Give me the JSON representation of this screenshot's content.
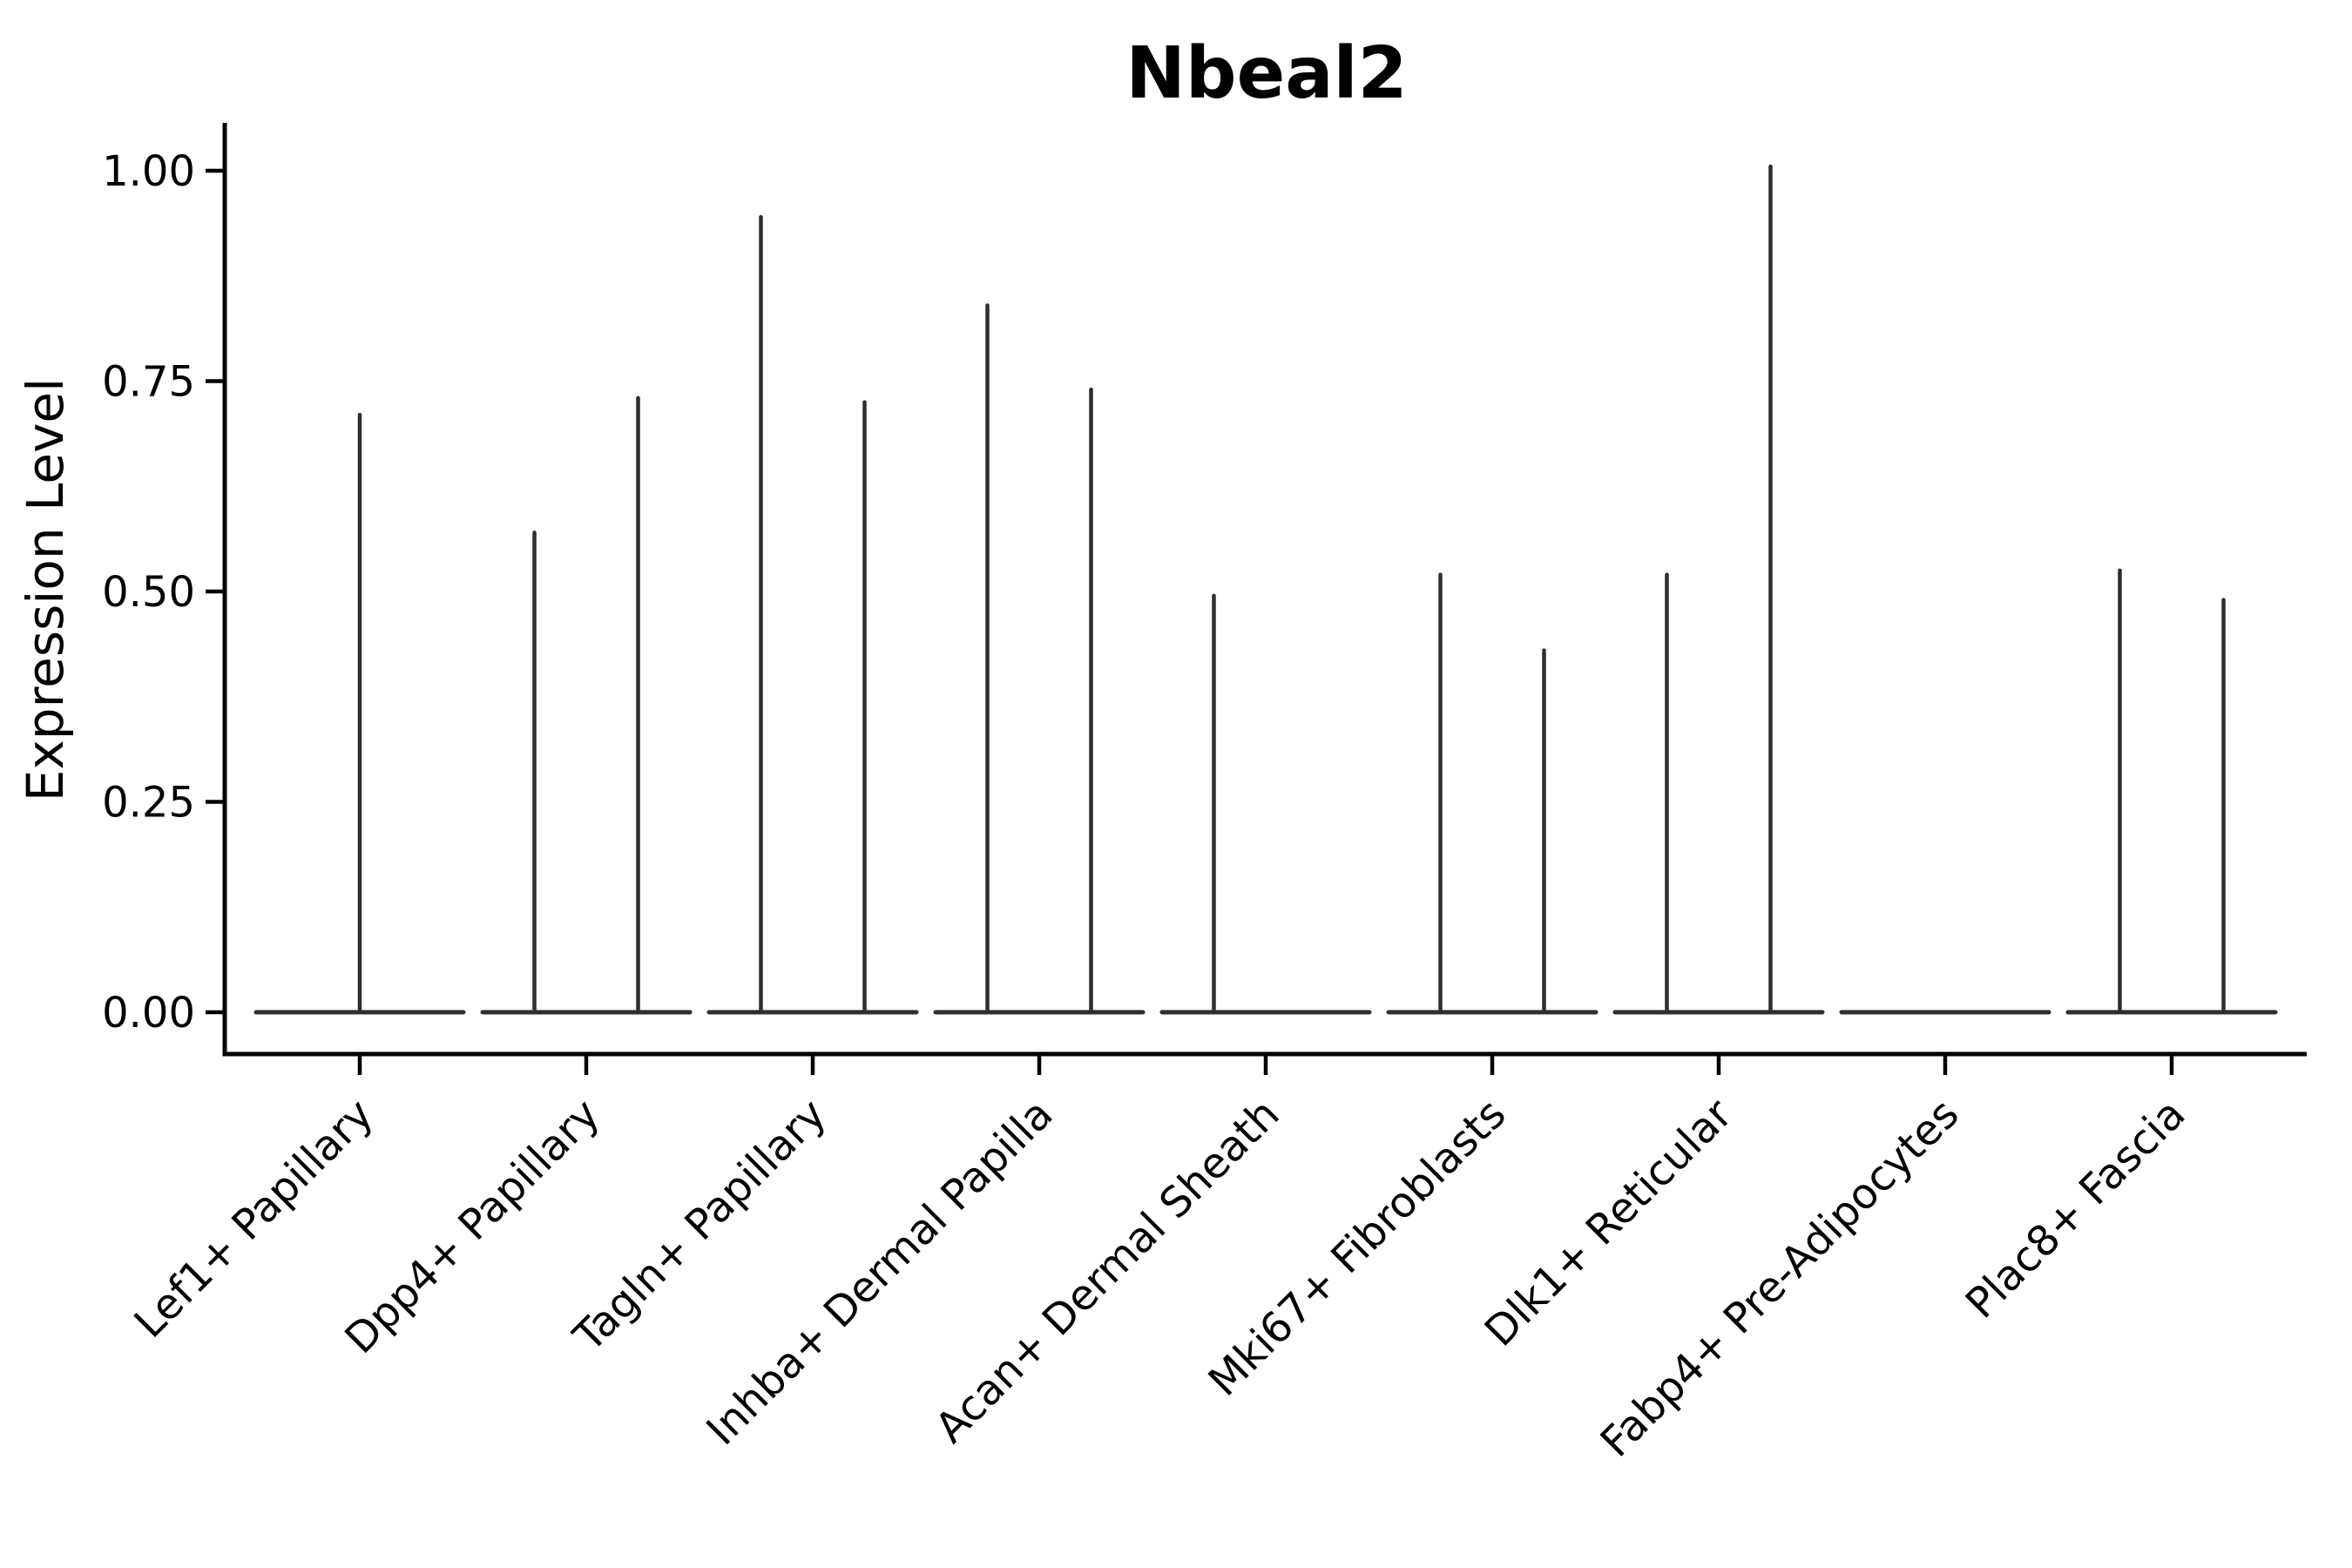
{
  "chart_data": {
    "type": "violin",
    "title": "Nbeal2",
    "ylabel": "Expression Level",
    "xlabel": "",
    "grid": false,
    "legend": "none",
    "ylim": [
      -0.05,
      1.055
    ],
    "yticks": [
      {
        "label": "0.00",
        "value": 0.0
      },
      {
        "label": "0.25",
        "value": 0.25
      },
      {
        "label": "0.50",
        "value": 0.5
      },
      {
        "label": "0.75",
        "value": 0.75
      },
      {
        "label": "1.00",
        "value": 1.0
      }
    ],
    "categories": [
      {
        "label": "Lef1+ Papillary",
        "violins": [
          {
            "offset": 0,
            "max": 0.71
          }
        ]
      },
      {
        "label": "Dpp4+ Papillary",
        "violins": [
          {
            "offset": -59.5,
            "max": 0.57
          },
          {
            "offset": 59.5,
            "max": 0.73
          }
        ]
      },
      {
        "label": "Tagln+ Papillary",
        "violins": [
          {
            "offset": -59.5,
            "max": 0.945
          },
          {
            "offset": 59.5,
            "max": 0.725
          }
        ]
      },
      {
        "label": "Inhba+ Dermal Papilla",
        "violins": [
          {
            "offset": -59.5,
            "max": 0.84
          },
          {
            "offset": 59.5,
            "max": 0.74
          }
        ]
      },
      {
        "label": "Acan+ Dermal Sheath",
        "violins": [
          {
            "offset": -59.5,
            "max": 0.495
          },
          {
            "offset": 59.5,
            "max": 0.0
          }
        ]
      },
      {
        "label": "Mki67+ Fibroblasts",
        "violins": [
          {
            "offset": -59.5,
            "max": 0.52
          },
          {
            "offset": 59.5,
            "max": 0.43
          }
        ]
      },
      {
        "label": "Dlk1+ Reticular",
        "violins": [
          {
            "offset": -59.5,
            "max": 0.52
          },
          {
            "offset": 59.5,
            "max": 1.005
          }
        ]
      },
      {
        "label": "Fabp4+ Pre-Adipocytes",
        "violins": [
          {
            "offset": -59.5,
            "max": 0.0
          },
          {
            "offset": 59.5,
            "max": 0.0
          }
        ]
      },
      {
        "label": "Plac8+ Fascia",
        "violins": [
          {
            "offset": -59.5,
            "max": 0.525
          },
          {
            "offset": 59.5,
            "max": 0.49
          }
        ]
      }
    ],
    "colors": {
      "violin_line": "#2e2e2e",
      "axis_line": "#000000",
      "text": "#000000",
      "background": "#ffffff"
    }
  }
}
